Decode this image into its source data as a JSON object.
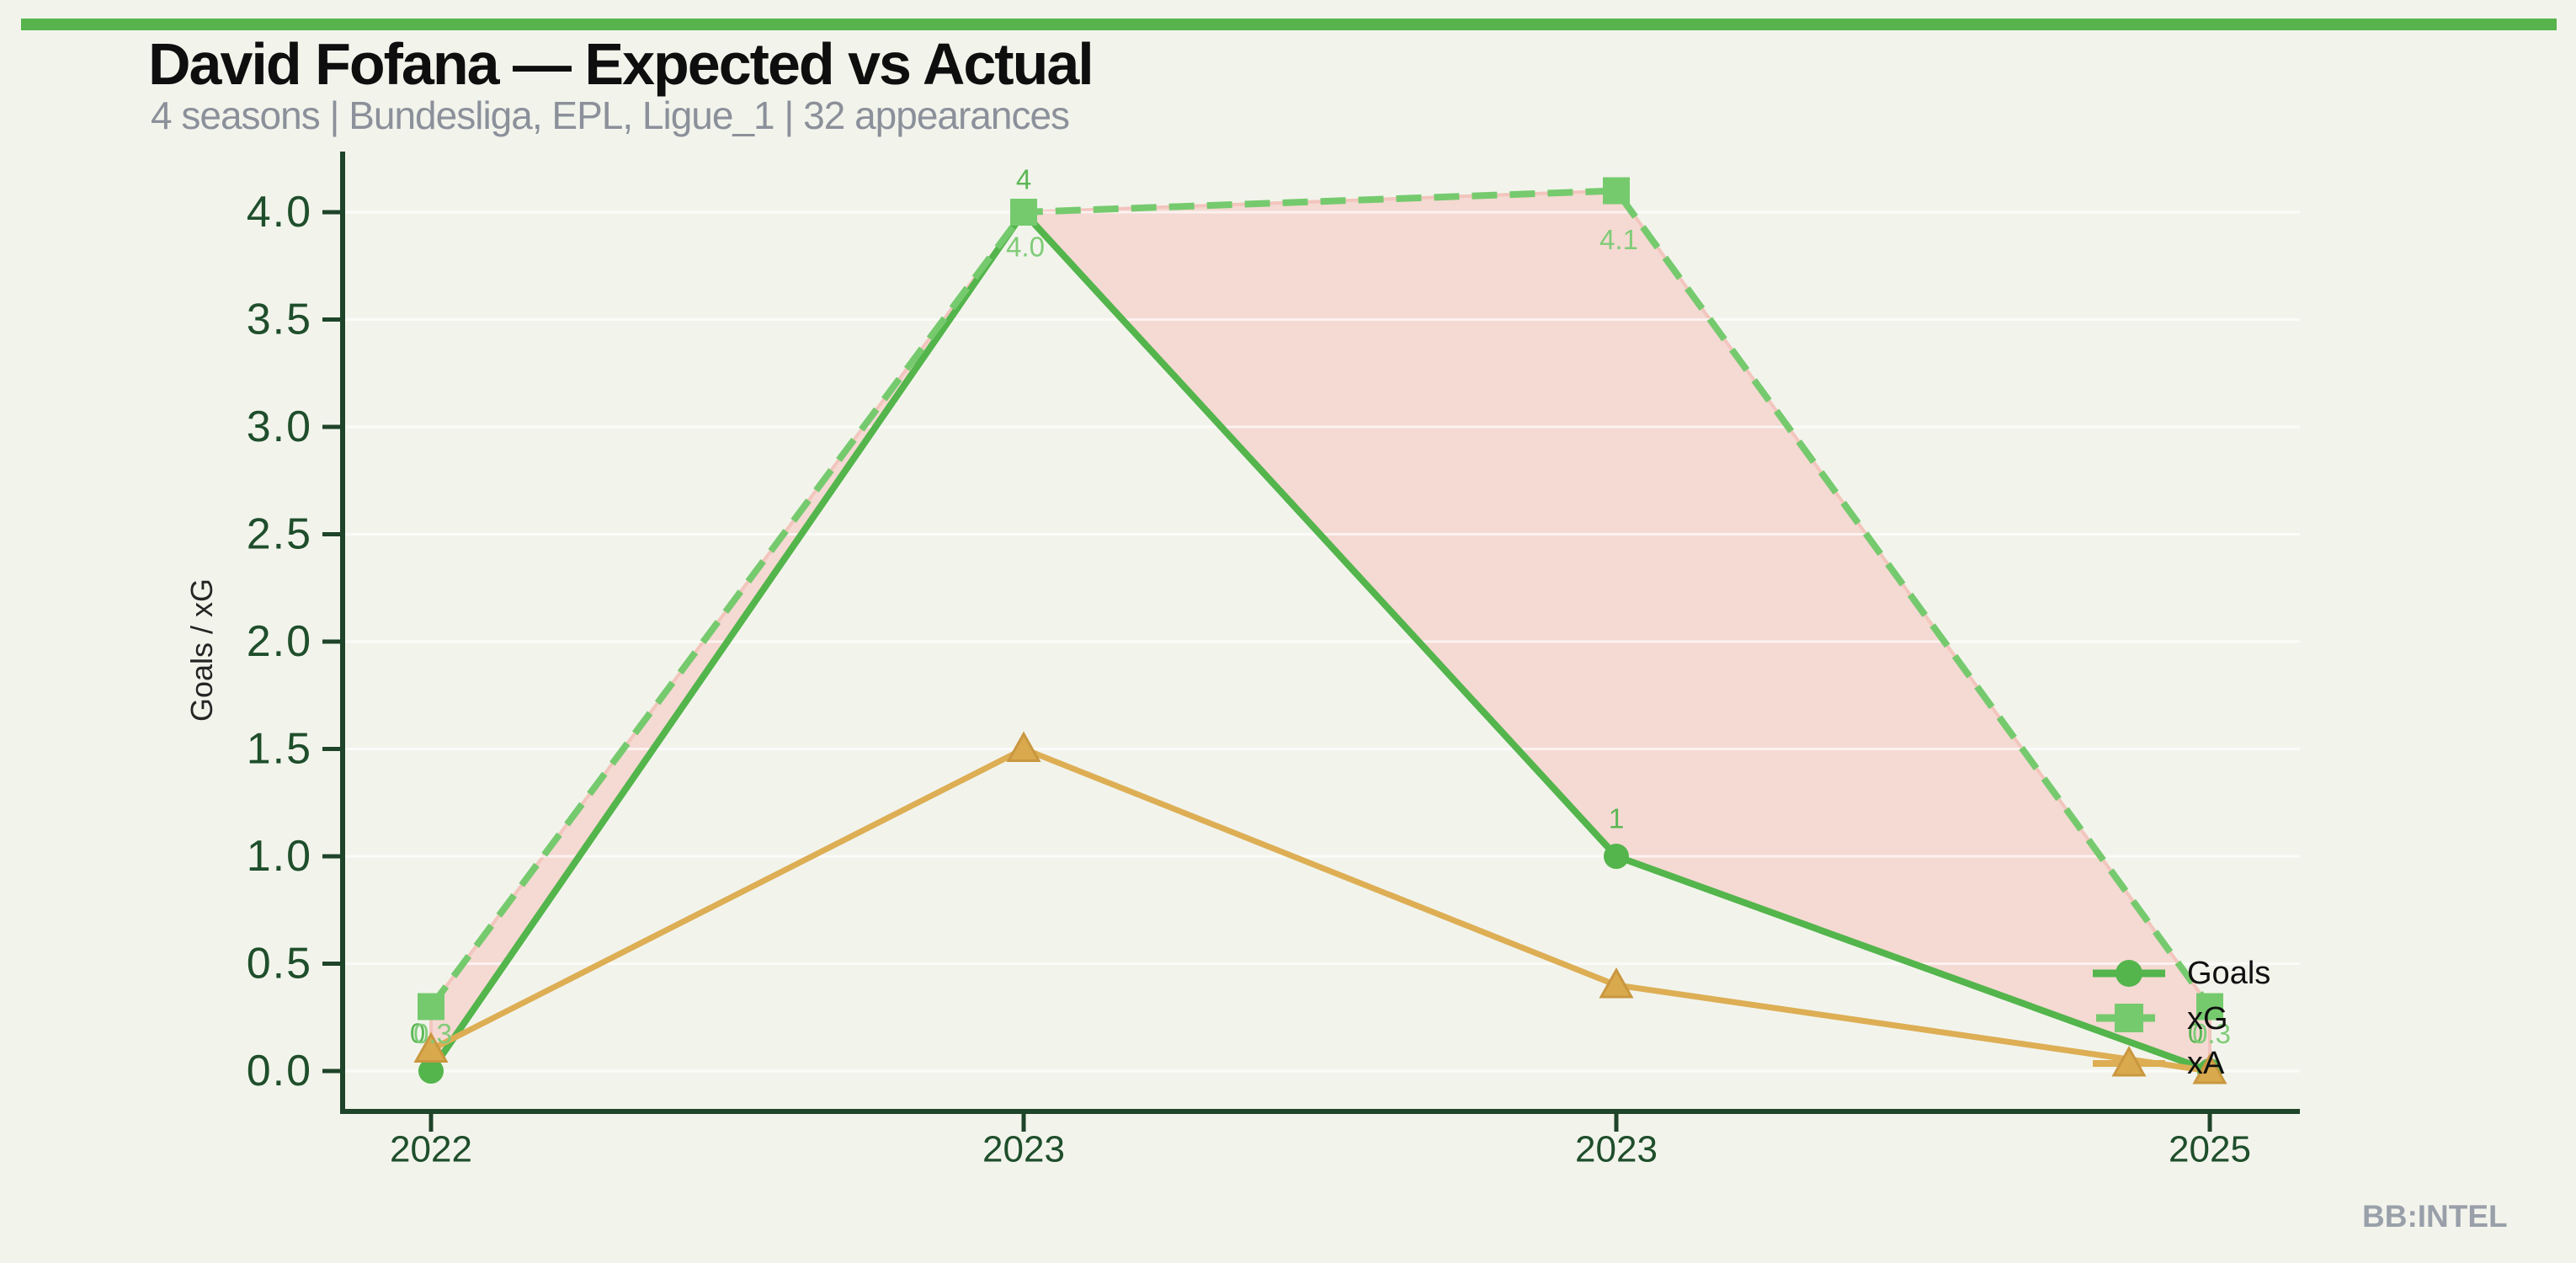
{
  "page": {
    "title": "David Fofana — Expected vs Actual",
    "subtitle": "4 seasons | Bundesliga, EPL, Ligue_1 | 32 appearances",
    "watermark": "BB:INTEL",
    "background_color": "#f2f4ec",
    "accent_bar_color": "#57b44c"
  },
  "chart_data": {
    "type": "line",
    "title": "David Fofana — Expected vs Actual",
    "subtitle": "4 seasons | Bundesliga, EPL, Ligue_1 | 32 appearances",
    "categories": [
      "2022",
      "2023",
      "2023",
      "2025"
    ],
    "xlabel": "",
    "ylabel": "Goals / xG",
    "ylim": [
      0,
      4.3
    ],
    "yticks": [
      "0.0",
      "0.5",
      "1.0",
      "1.5",
      "2.0",
      "2.5",
      "3.0",
      "3.5",
      "4.0"
    ],
    "grid": true,
    "legend_position": "inside-lower-right",
    "series": [
      {
        "name": "Goals",
        "values": [
          0,
          4,
          1,
          0
        ],
        "point_labels": [
          "0",
          "4",
          "1",
          "0"
        ],
        "color": "#53b54b",
        "label_color": "#5cb755",
        "marker": "circle",
        "line_style": "solid"
      },
      {
        "name": "xG",
        "values": [
          0.3,
          4.0,
          4.1,
          0.3
        ],
        "point_labels": [
          "0.3",
          "4.0",
          "4.1",
          "0.3"
        ],
        "color": "#76ca6e",
        "label_color": "#80cc78",
        "marker": "square",
        "line_style": "dashed"
      },
      {
        "name": "xA",
        "values": [
          0.1,
          1.5,
          0.4,
          0.0
        ],
        "point_labels": [],
        "color": "#ddae54",
        "marker_fill": "#d9a94e",
        "marker_edge": "#c9973f",
        "marker": "triangle",
        "line_style": "solid"
      }
    ],
    "shaded_region": {
      "between": [
        "xG",
        "Goals"
      ],
      "fill_color": "#f5d9d3",
      "edge_color": "#f2c5bd",
      "meaning": "gap between expected goals and actual goals"
    },
    "axis_color": "#1e4429",
    "tick_label_color": "#1f4e2b",
    "gridline_color": "rgba(255,255,255,0.65)"
  }
}
